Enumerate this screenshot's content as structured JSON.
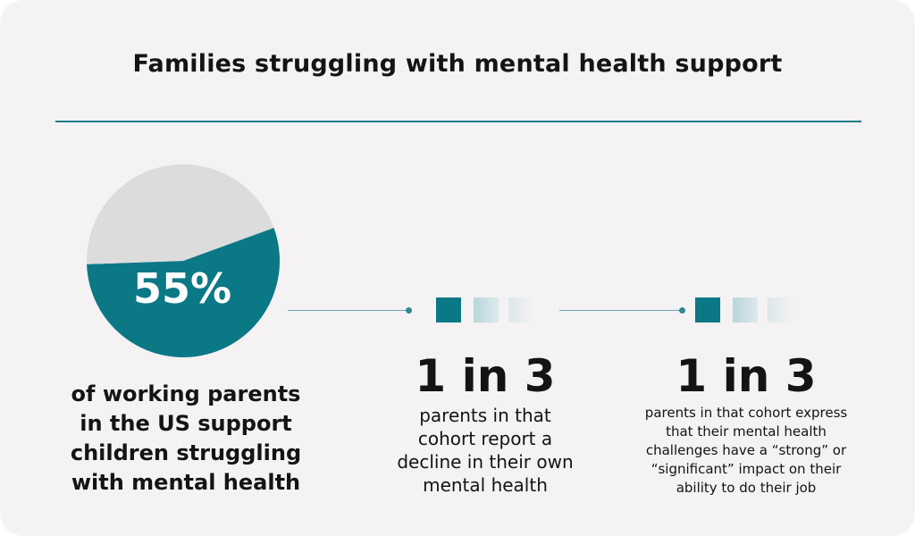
{
  "title": "Families struggling with mental health support",
  "colors": {
    "accent": "#0b7886",
    "pie_rest": "#dddcdd",
    "rule": "#1f7a8c",
    "background": "#f4f2f3"
  },
  "chart_data": {
    "type": "pie",
    "title": "",
    "slices": [
      {
        "label": "55%",
        "value": 55,
        "color": "#0b7886"
      },
      {
        "label": "",
        "value": 45,
        "color": "#dddcdd"
      }
    ]
  },
  "stats": [
    {
      "value": "55%",
      "description": [
        "of working parents",
        "in the US support",
        "children struggling",
        "with mental health"
      ]
    },
    {
      "value": "1 in 3",
      "description": [
        "parents in that",
        "cohort report a",
        "decline in their own",
        "mental health"
      ]
    },
    {
      "value": "1 in 3",
      "description": [
        "parents in that cohort express",
        "that their mental health",
        "challenges have a “strong” or",
        "“significant” impact on their",
        "ability to do their job"
      ]
    }
  ]
}
